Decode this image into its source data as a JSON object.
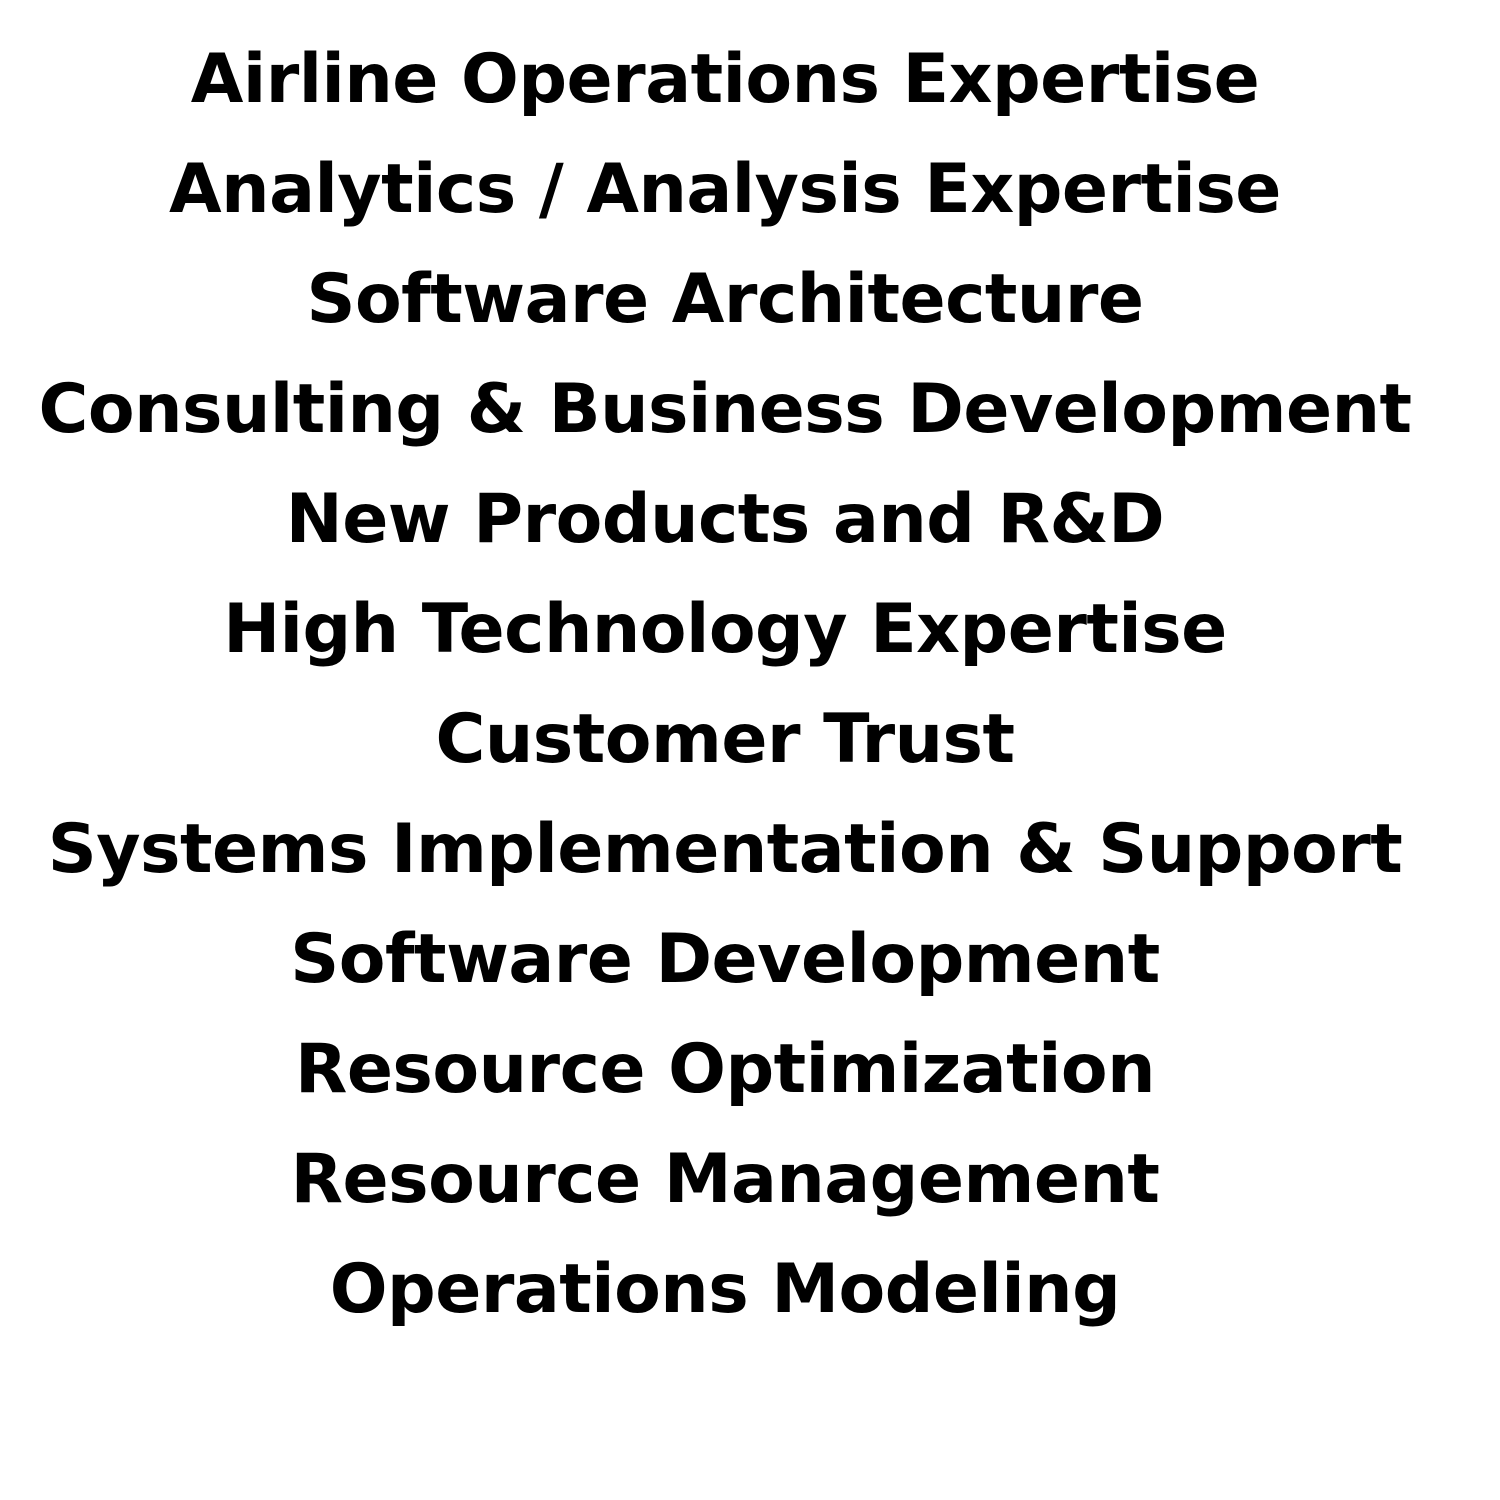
{
  "items": [
    "Airline Operations Expertise",
    "Analytics / Analysis Expertise",
    "Software Architecture",
    "Consulting & Business Development",
    "New Products and R&D",
    "High Technology Expertise",
    "Customer Trust",
    "Systems Implementation & Support",
    "Software Development",
    "Resource Optimization",
    "Resource Management",
    "Operations Modeling"
  ],
  "colors": {
    "background": "#ffffff",
    "text": "#000000"
  }
}
